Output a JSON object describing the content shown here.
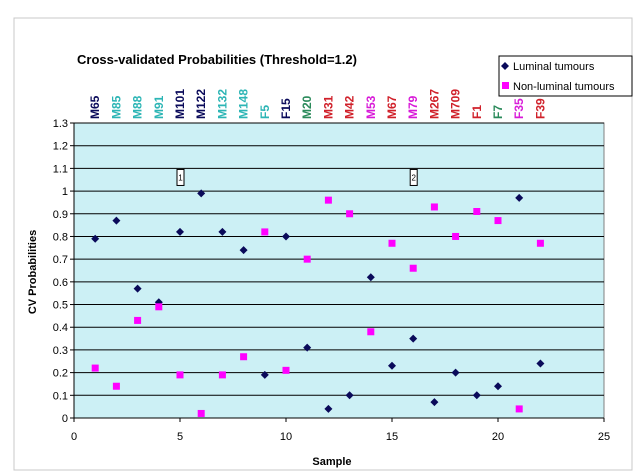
{
  "chart_data": {
    "type": "scatter",
    "title": "Cross-validated Probabilities (Threshold=1.2)",
    "xlabel": "Sample",
    "ylabel": "CV Probabilities",
    "xlim": [
      0,
      25
    ],
    "ylim": [
      0,
      1.3
    ],
    "xticks": [
      "0",
      "5",
      "10",
      "15",
      "20",
      "25"
    ],
    "yticks": [
      "0",
      "0.1",
      "0.2",
      "0.3",
      "0.4",
      "0.5",
      "0.6",
      "0.7",
      "0.8",
      "0.9",
      "1",
      "1.1",
      "1.2",
      "1.3"
    ],
    "grid": true,
    "plot_background": "#ccf0f5",
    "legend_position": "top-right",
    "sample_labels": [
      {
        "label": "M65",
        "color": "#0a0a5a"
      },
      {
        "label": "M85",
        "color": "#2cb5b5"
      },
      {
        "label": "M88",
        "color": "#2cb5b5"
      },
      {
        "label": "M91",
        "color": "#2cb5b5"
      },
      {
        "label": "M101",
        "color": "#0a0a5a"
      },
      {
        "label": "M122",
        "color": "#0a0a5a"
      },
      {
        "label": "M132",
        "color": "#2cb5b5"
      },
      {
        "label": "M148",
        "color": "#2cb5b5"
      },
      {
        "label": "F5",
        "color": "#2cb5b5"
      },
      {
        "label": "F15",
        "color": "#0a0a5a"
      },
      {
        "label": "M20",
        "color": "#2a8a5a"
      },
      {
        "label": "M31",
        "color": "#d0202a"
      },
      {
        "label": "M42",
        "color": "#d0202a"
      },
      {
        "label": "M53",
        "color": "#d81ad8"
      },
      {
        "label": "M67",
        "color": "#d0202a"
      },
      {
        "label": "M79",
        "color": "#d81ad8"
      },
      {
        "label": "M267",
        "color": "#d0202a"
      },
      {
        "label": "M709",
        "color": "#d0202a"
      },
      {
        "label": "F1",
        "color": "#d0202a"
      },
      {
        "label": "F7",
        "color": "#2a8a5a"
      },
      {
        "label": "F35",
        "color": "#d81ad8"
      },
      {
        "label": "F39",
        "color": "#d0202a"
      }
    ],
    "annotations": [
      {
        "text": "1",
        "x": 5,
        "y": 1.06
      },
      {
        "text": "2",
        "x": 16,
        "y": 1.06
      }
    ],
    "series": [
      {
        "name": "Luminal tumours",
        "marker": "diamond",
        "color": "#0a0a5a",
        "x": [
          1,
          2,
          3,
          4,
          5,
          6,
          7,
          8,
          9,
          10,
          11,
          12,
          13,
          14,
          15,
          16,
          17,
          18,
          19,
          20,
          21,
          22
        ],
        "y": [
          0.79,
          0.87,
          0.57,
          0.51,
          0.82,
          0.99,
          0.82,
          0.74,
          0.19,
          0.8,
          0.31,
          0.04,
          0.1,
          0.62,
          0.23,
          0.35,
          0.07,
          0.2,
          0.1,
          0.14,
          0.97,
          0.24
        ]
      },
      {
        "name": "Non-luminal tumours",
        "marker": "square",
        "color": "#ff00ff",
        "x": [
          1,
          2,
          3,
          4,
          5,
          6,
          7,
          8,
          9,
          10,
          11,
          12,
          13,
          14,
          15,
          16,
          17,
          18,
          19,
          20,
          21,
          22
        ],
        "y": [
          0.22,
          0.14,
          0.43,
          0.49,
          0.19,
          0.02,
          0.19,
          0.27,
          0.82,
          0.21,
          0.7,
          0.96,
          0.9,
          0.38,
          0.77,
          0.66,
          0.93,
          0.8,
          0.91,
          0.87,
          0.04,
          0.77
        ]
      }
    ]
  }
}
